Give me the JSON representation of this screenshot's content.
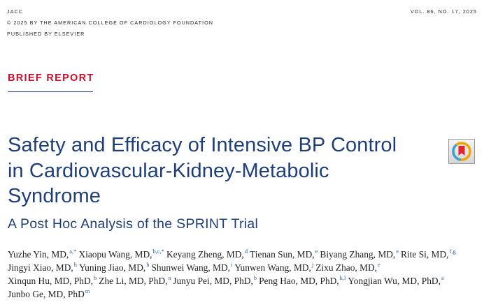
{
  "header": {
    "journal": "JACC",
    "copyright": "© 2025 BY THE AMERICAN COLLEGE OF CARDIOLOGY FOUNDATION",
    "publisher": "PUBLISHED BY ELSEVIER",
    "volume": "VOL. 86, NO. 17, 2025"
  },
  "section_label": "BRIEF REPORT",
  "title": "Safety and Efficacy of Intensive BP Control in Cardiovascular-Kidney-Metabolic Syndrome",
  "subtitle": "A Post Hoc Analysis of the SPRINT Trial",
  "badge_icon": "check-for-updates-icon",
  "colors": {
    "title": "#1f3f7a",
    "section": "#c8102e",
    "affil_sup": "#1f5fa6"
  },
  "author_lines": [
    [
      {
        "name": "Yuzhe Yin, MD,",
        "sup": "a,*"
      },
      {
        "name": "Xiaopu Wang, MD,",
        "sup": "b,c,*"
      },
      {
        "name": "Keyang Zheng, MD,",
        "sup": "d"
      },
      {
        "name": "Tienan Sun, MD,",
        "sup": "e"
      },
      {
        "name": "Biyang Zhang, MD,",
        "sup": "e"
      },
      {
        "name": "Rite Si, MD,",
        "sup": "f,g"
      }
    ],
    [
      {
        "name": "Jingyi Xiao, MD,",
        "sup": "h"
      },
      {
        "name": "Yuning Jiao, MD,",
        "sup": "h"
      },
      {
        "name": "Shunwei Wang, MD,",
        "sup": "i"
      },
      {
        "name": "Yunwen Wang, MD,",
        "sup": "j"
      },
      {
        "name": "Zixu Zhao, MD,",
        "sup": "e"
      }
    ],
    [
      {
        "name": "Xinqun Hu, MD, PhD,",
        "sup": "b"
      },
      {
        "name": "Zhe Li, MD, PhD,",
        "sup": "a"
      },
      {
        "name": "Junyu Pei, MD, PhD,",
        "sup": "b"
      },
      {
        "name": "Peng Hao, MD, PhD,",
        "sup": "k,l"
      },
      {
        "name": "Yongjian Wu, MD, PhD,",
        "sup": "a"
      }
    ],
    [
      {
        "name": "Junbo Ge, MD, PhD",
        "sup": "m"
      }
    ]
  ]
}
